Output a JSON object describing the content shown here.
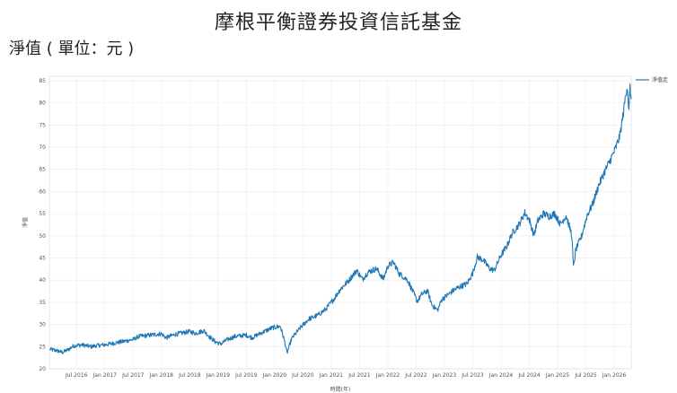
{
  "title": "摩根平衡證券投資信託基金",
  "subtitle": "淨值 ( 單位：元 )",
  "chart_data": {
    "type": "line",
    "xlabel": "時間(年)",
    "ylabel": "淨值",
    "ylim": [
      20,
      86
    ],
    "yticks": [
      20,
      25,
      30,
      35,
      40,
      45,
      50,
      55,
      60,
      65,
      70,
      75,
      80,
      85
    ],
    "xlim": [
      2016.02,
      2026.3
    ],
    "xticks": [
      {
        "x": 2016.5,
        "label": "Jul 2016"
      },
      {
        "x": 2017.0,
        "label": "Jan 2017"
      },
      {
        "x": 2017.5,
        "label": "Jul 2017"
      },
      {
        "x": 2018.0,
        "label": "Jan 2018"
      },
      {
        "x": 2018.5,
        "label": "Jul 2018"
      },
      {
        "x": 2019.0,
        "label": "Jan 2019"
      },
      {
        "x": 2019.5,
        "label": "Jul 2019"
      },
      {
        "x": 2020.0,
        "label": "Jan 2020"
      },
      {
        "x": 2020.5,
        "label": "Jul 2020"
      },
      {
        "x": 2021.0,
        "label": "Jan 2021"
      },
      {
        "x": 2021.5,
        "label": "Jul 2021"
      },
      {
        "x": 2022.0,
        "label": "Jan 2022"
      },
      {
        "x": 2022.5,
        "label": "Jul 2022"
      },
      {
        "x": 2023.0,
        "label": "Jan 2023"
      },
      {
        "x": 2023.5,
        "label": "Jul 2023"
      },
      {
        "x": 2024.0,
        "label": "Jan 2024"
      },
      {
        "x": 2024.5,
        "label": "Jul 2024"
      },
      {
        "x": 2025.0,
        "label": "Jan 2025"
      },
      {
        "x": 2025.5,
        "label": "Jul 2025"
      },
      {
        "x": 2026.0,
        "label": "Jan 2026"
      }
    ],
    "grid": true,
    "legend_position": "top-right",
    "series": [
      {
        "name": "淨值走",
        "color": "#1f77b4",
        "points": [
          [
            2016.03,
            24.4
          ],
          [
            2016.15,
            24.1
          ],
          [
            2016.25,
            23.7
          ],
          [
            2016.35,
            24.3
          ],
          [
            2016.45,
            25.2
          ],
          [
            2016.6,
            25.4
          ],
          [
            2016.75,
            25.0
          ],
          [
            2016.9,
            25.3
          ],
          [
            2017.0,
            25.4
          ],
          [
            2017.25,
            26.0
          ],
          [
            2017.5,
            26.6
          ],
          [
            2017.6,
            27.3
          ],
          [
            2017.8,
            27.6
          ],
          [
            2018.0,
            27.9
          ],
          [
            2018.08,
            27.0
          ],
          [
            2018.25,
            27.8
          ],
          [
            2018.5,
            28.4
          ],
          [
            2018.6,
            28.0
          ],
          [
            2018.75,
            28.6
          ],
          [
            2018.85,
            27.2
          ],
          [
            2018.95,
            26.1
          ],
          [
            2019.05,
            25.6
          ],
          [
            2019.15,
            26.5
          ],
          [
            2019.3,
            27.3
          ],
          [
            2019.5,
            27.6
          ],
          [
            2019.6,
            27.0
          ],
          [
            2019.75,
            28.0
          ],
          [
            2019.95,
            29.2
          ],
          [
            2020.1,
            29.6
          ],
          [
            2020.17,
            26.5
          ],
          [
            2020.22,
            23.5
          ],
          [
            2020.3,
            26.8
          ],
          [
            2020.45,
            29.2
          ],
          [
            2020.6,
            31.2
          ],
          [
            2020.75,
            32.0
          ],
          [
            2020.9,
            33.4
          ],
          [
            2021.05,
            35.8
          ],
          [
            2021.15,
            37.8
          ],
          [
            2021.3,
            39.8
          ],
          [
            2021.45,
            42.2
          ],
          [
            2021.55,
            40.2
          ],
          [
            2021.65,
            41.8
          ],
          [
            2021.8,
            42.6
          ],
          [
            2021.92,
            40.2
          ],
          [
            2022.0,
            43.2
          ],
          [
            2022.1,
            44.0
          ],
          [
            2022.2,
            41.5
          ],
          [
            2022.35,
            40.0
          ],
          [
            2022.45,
            37.2
          ],
          [
            2022.52,
            35.2
          ],
          [
            2022.6,
            36.8
          ],
          [
            2022.7,
            37.6
          ],
          [
            2022.78,
            34.4
          ],
          [
            2022.88,
            33.2
          ],
          [
            2022.95,
            35.6
          ],
          [
            2023.05,
            36.6
          ],
          [
            2023.15,
            37.6
          ],
          [
            2023.25,
            38.4
          ],
          [
            2023.4,
            39.2
          ],
          [
            2023.5,
            41.6
          ],
          [
            2023.58,
            45.2
          ],
          [
            2023.68,
            44.6
          ],
          [
            2023.8,
            42.6
          ],
          [
            2023.88,
            42.2
          ],
          [
            2024.0,
            45.6
          ],
          [
            2024.1,
            47.6
          ],
          [
            2024.2,
            50.6
          ],
          [
            2024.32,
            52.6
          ],
          [
            2024.42,
            55.2
          ],
          [
            2024.5,
            53.6
          ],
          [
            2024.58,
            50.2
          ],
          [
            2024.65,
            53.4
          ],
          [
            2024.75,
            55.0
          ],
          [
            2024.85,
            54.4
          ],
          [
            2024.95,
            55.0
          ],
          [
            2025.05,
            52.6
          ],
          [
            2025.15,
            54.6
          ],
          [
            2025.25,
            50.2
          ],
          [
            2025.28,
            42.8
          ],
          [
            2025.32,
            46.8
          ],
          [
            2025.42,
            49.8
          ],
          [
            2025.52,
            54.6
          ],
          [
            2025.62,
            57.2
          ],
          [
            2025.72,
            61.2
          ],
          [
            2025.82,
            64.2
          ],
          [
            2025.92,
            66.8
          ],
          [
            2026.02,
            69.6
          ],
          [
            2026.1,
            72.6
          ],
          [
            2026.16,
            77.6
          ],
          [
            2026.2,
            81.6
          ],
          [
            2026.23,
            84.0
          ],
          [
            2026.26,
            78.0
          ],
          [
            2026.28,
            83.6
          ],
          [
            2026.3,
            80.8
          ]
        ]
      }
    ]
  }
}
